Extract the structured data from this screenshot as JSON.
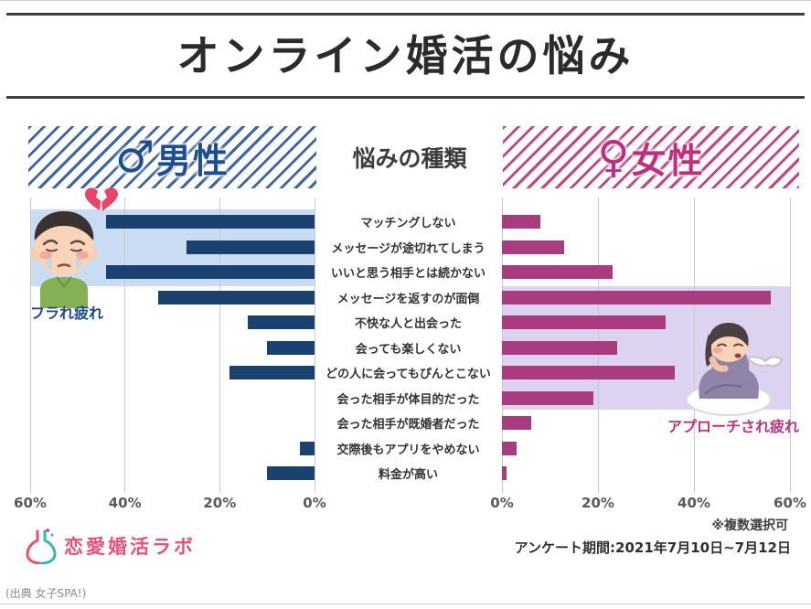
{
  "title": "オンライン婚活の悩み",
  "header": {
    "male_symbol": "♂",
    "male_label": "男性",
    "center_label": "悩みの種類",
    "female_symbol": "♀",
    "female_label": "女性"
  },
  "chart_data": {
    "type": "bar",
    "orientation": "butterfly-horizontal",
    "title": "オンライン婚活の悩み",
    "categories": [
      "マッチングしない",
      "メッセージが途切れてしまう",
      "いいと思う相手とは続かない",
      "メッセージを返すのが面倒",
      "不快な人と出会った",
      "会っても楽しくない",
      "どの人に会ってもぴんとこない",
      "会った相手が体目的だった",
      "会った相手が既婚者だった",
      "交際後もアプリをやめない",
      "料金が高い"
    ],
    "series": [
      {
        "name": "男性",
        "color": "#1b4171",
        "values": [
          44,
          27,
          44,
          33,
          14,
          10,
          18,
          0,
          0,
          3,
          10
        ]
      },
      {
        "name": "女性",
        "color": "#a93c7e",
        "values": [
          8,
          13,
          23,
          56,
          34,
          24,
          36,
          19,
          6,
          3,
          1
        ]
      }
    ],
    "xlim": [
      0,
      60
    ],
    "axis_ticks_left": [
      "60%",
      "40%",
      "20%",
      "0%"
    ],
    "axis_ticks_right": [
      "0%",
      "20%",
      "40%",
      "60%"
    ],
    "grid": true,
    "highlights": [
      {
        "side": "male",
        "rows": "1-3",
        "label": "フラれ疲れ",
        "color": "#c9dcf4"
      },
      {
        "side": "female",
        "rows": "4-8",
        "label": "アプローチされ疲れ",
        "color": "#ddd3f0"
      }
    ]
  },
  "annotations": {
    "male_highlight_label": "フラれ疲れ",
    "female_highlight_label": "アプローチされ疲れ"
  },
  "footer": {
    "logo_text": "恋愛婚活ラボ",
    "note_multi": "※複数選択可",
    "note_period": "アンケート期間:2021年7月10日~7月12日",
    "source": "(出典 女子SPA!)"
  }
}
